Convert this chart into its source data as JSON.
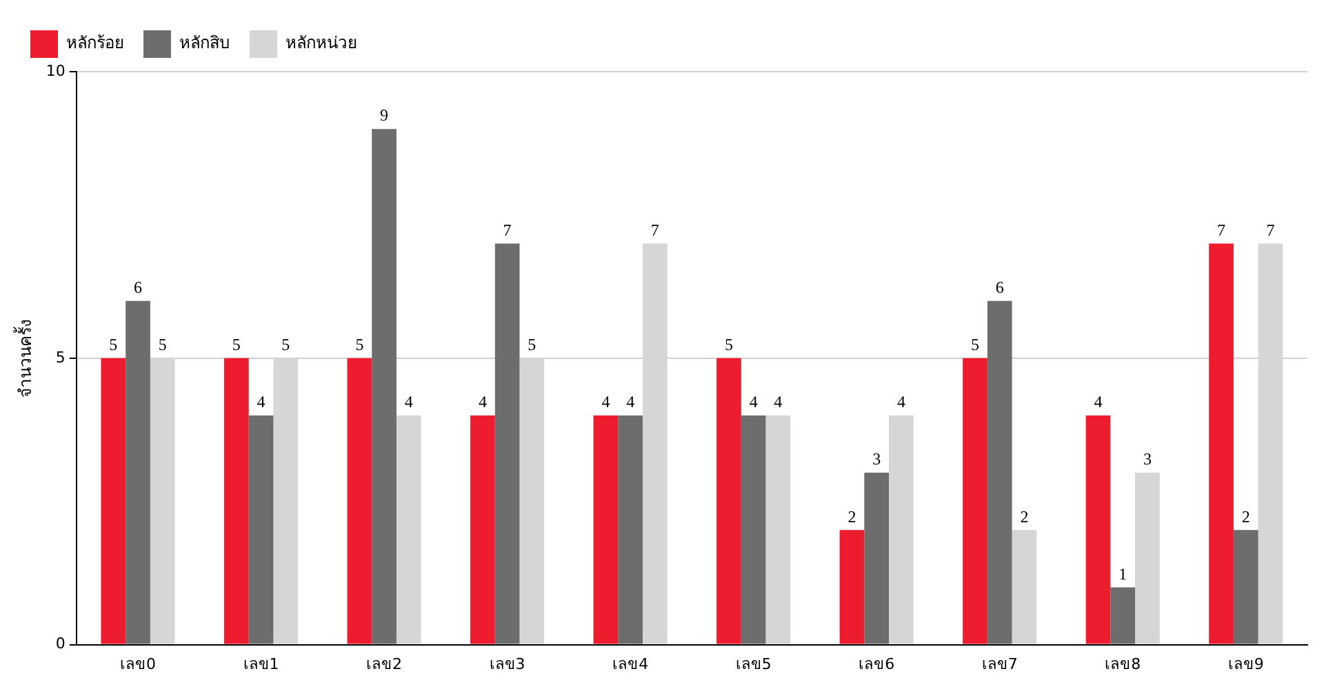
{
  "chart_data": {
    "type": "bar",
    "ylabel": "จำนวนครั้ง",
    "categories": [
      "เลข0",
      "เลข1",
      "เลข2",
      "เลข3",
      "เลข4",
      "เลข5",
      "เลข6",
      "เลข7",
      "เลข8",
      "เลข9"
    ],
    "series": [
      {
        "name": "หลักร้อย",
        "color": "#ed1c2e",
        "values": [
          5,
          5,
          5,
          4,
          4,
          5,
          2,
          5,
          4,
          7
        ]
      },
      {
        "name": "หลักสิบ",
        "color": "#6d6d6d",
        "values": [
          6,
          4,
          9,
          7,
          4,
          4,
          3,
          6,
          1,
          2
        ]
      },
      {
        "name": "หลักหน่วย",
        "color": "#d6d6d6",
        "values": [
          5,
          5,
          4,
          5,
          7,
          4,
          4,
          2,
          3,
          7
        ]
      }
    ],
    "ylim": [
      0,
      10
    ],
    "yticks": [
      0,
      5,
      10
    ],
    "grid": "y",
    "legend": "top left",
    "data_labels": true
  }
}
